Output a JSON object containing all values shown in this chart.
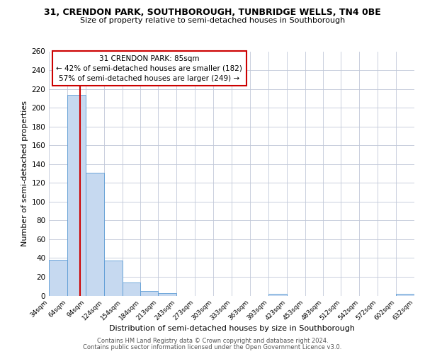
{
  "title_line1": "31, CRENDON PARK, SOUTHBOROUGH, TUNBRIDGE WELLS, TN4 0BE",
  "title_line2": "Size of property relative to semi-detached houses in Southborough",
  "xlabel": "Distribution of semi-detached houses by size in Southborough",
  "ylabel": "Number of semi-detached properties",
  "bin_edges": [
    34,
    64,
    94,
    124,
    154,
    184,
    213,
    243,
    273,
    303,
    333,
    363,
    393,
    423,
    453,
    483,
    512,
    542,
    572,
    602,
    632
  ],
  "bin_counts": [
    38,
    214,
    131,
    37,
    14,
    5,
    3,
    0,
    0,
    0,
    0,
    0,
    2,
    0,
    0,
    0,
    0,
    0,
    0,
    2
  ],
  "bar_color": "#c6d9f0",
  "bar_edge_color": "#5b9bd5",
  "property_size": 85,
  "redline_color": "#cc0000",
  "annotation_title": "31 CRENDON PARK: 85sqm",
  "annotation_line1": "← 42% of semi-detached houses are smaller (182)",
  "annotation_line2": "57% of semi-detached houses are larger (249) →",
  "annotation_box_edge_color": "#cc0000",
  "ylim": [
    0,
    260
  ],
  "yticks": [
    0,
    20,
    40,
    60,
    80,
    100,
    120,
    140,
    160,
    180,
    200,
    220,
    240,
    260
  ],
  "tick_labels": [
    "34sqm",
    "64sqm",
    "94sqm",
    "124sqm",
    "154sqm",
    "184sqm",
    "213sqm",
    "243sqm",
    "273sqm",
    "303sqm",
    "333sqm",
    "363sqm",
    "393sqm",
    "423sqm",
    "453sqm",
    "483sqm",
    "512sqm",
    "542sqm",
    "572sqm",
    "602sqm",
    "632sqm"
  ],
  "footer_line1": "Contains HM Land Registry data © Crown copyright and database right 2024.",
  "footer_line2": "Contains public sector information licensed under the Open Government Licence v3.0.",
  "background_color": "#ffffff",
  "grid_color": "#c0c8d8"
}
